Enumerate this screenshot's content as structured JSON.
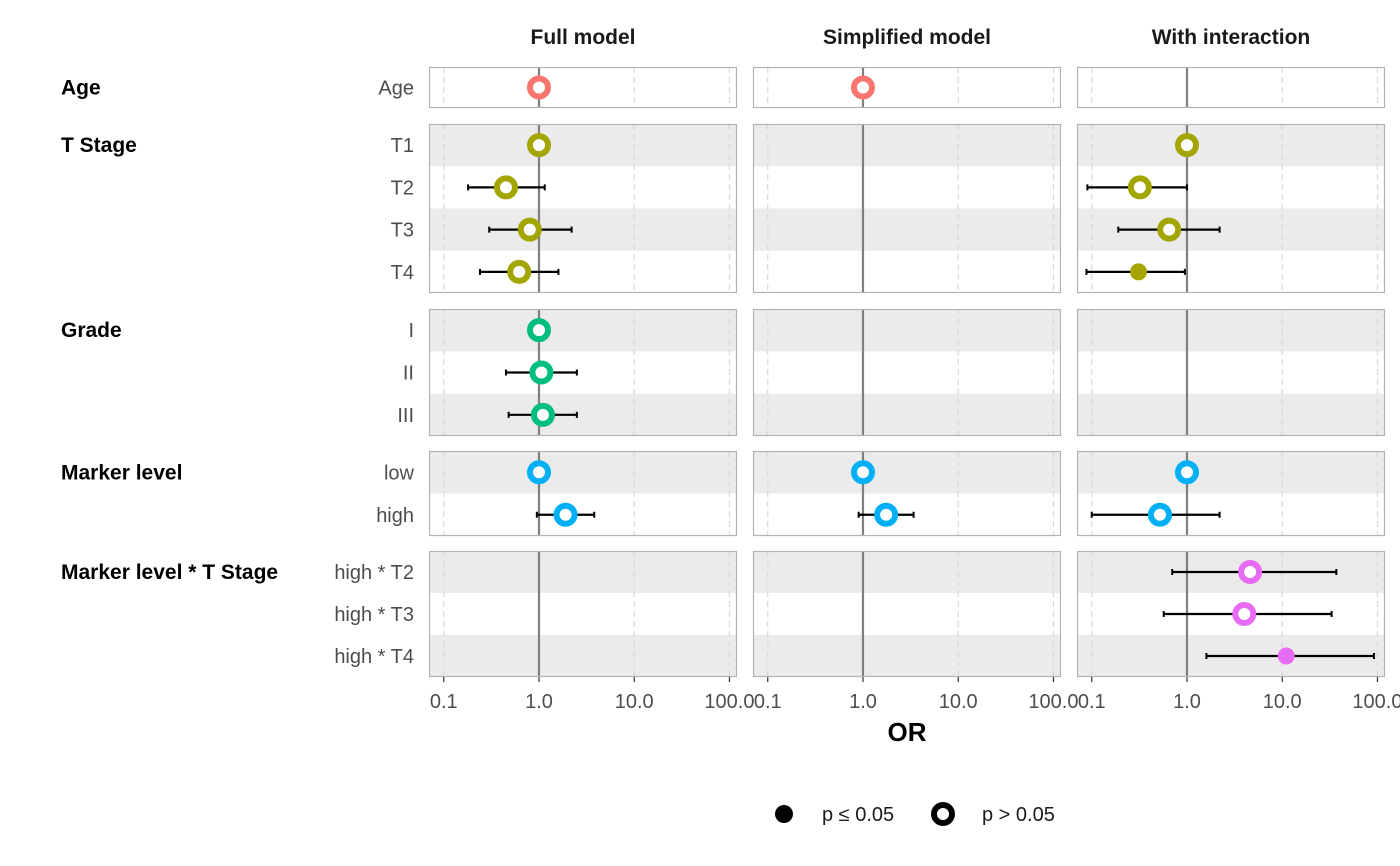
{
  "chart_data": {
    "type": "forest",
    "xlabel": "OR",
    "x_scale": "log10",
    "xlim": [
      0.07,
      120
    ],
    "x_ticks": [
      0.1,
      1.0,
      10.0,
      100.0
    ],
    "x_tick_labels": [
      "0.1",
      "1.0",
      "10.0",
      "100.0"
    ],
    "reference_line": 1.0,
    "facets": [
      "Full model",
      "Simplified model",
      "With interaction"
    ],
    "groups": [
      {
        "variable": "Age",
        "color": "#F8766D",
        "levels": [
          "Age"
        ]
      },
      {
        "variable": "T Stage",
        "color": "#A3A500",
        "levels": [
          "T1",
          "T2",
          "T3",
          "T4"
        ]
      },
      {
        "variable": "Grade",
        "color": "#00BF7D",
        "levels": [
          "I",
          "II",
          "III"
        ]
      },
      {
        "variable": "Marker level",
        "color": "#00B0F6",
        "levels": [
          "low",
          "high"
        ]
      },
      {
        "variable": "Marker level * T Stage",
        "color": "#E76BF3",
        "levels": [
          "high * T2",
          "high * T3",
          "high * T4"
        ]
      }
    ],
    "estimates": [
      {
        "facet": 0,
        "group": 0,
        "level": 0,
        "or": 1.0,
        "lo": null,
        "hi": null,
        "sig": false
      },
      {
        "facet": 0,
        "group": 1,
        "level": 0,
        "or": 1.0,
        "lo": null,
        "hi": null,
        "sig": false
      },
      {
        "facet": 0,
        "group": 1,
        "level": 1,
        "or": 0.45,
        "lo": 0.18,
        "hi": 1.15,
        "sig": false
      },
      {
        "facet": 0,
        "group": 1,
        "level": 2,
        "or": 0.8,
        "lo": 0.3,
        "hi": 2.2,
        "sig": false
      },
      {
        "facet": 0,
        "group": 1,
        "level": 3,
        "or": 0.62,
        "lo": 0.24,
        "hi": 1.6,
        "sig": false
      },
      {
        "facet": 0,
        "group": 2,
        "level": 0,
        "or": 1.0,
        "lo": null,
        "hi": null,
        "sig": false
      },
      {
        "facet": 0,
        "group": 2,
        "level": 1,
        "or": 1.06,
        "lo": 0.45,
        "hi": 2.5,
        "sig": false
      },
      {
        "facet": 0,
        "group": 2,
        "level": 2,
        "or": 1.1,
        "lo": 0.48,
        "hi": 2.5,
        "sig": false
      },
      {
        "facet": 0,
        "group": 3,
        "level": 0,
        "or": 1.0,
        "lo": null,
        "hi": null,
        "sig": false
      },
      {
        "facet": 0,
        "group": 3,
        "level": 1,
        "or": 1.9,
        "lo": 0.95,
        "hi": 3.8,
        "sig": false
      },
      {
        "facet": 1,
        "group": 0,
        "level": 0,
        "or": 1.0,
        "lo": null,
        "hi": null,
        "sig": false
      },
      {
        "facet": 1,
        "group": 3,
        "level": 0,
        "or": 1.0,
        "lo": null,
        "hi": null,
        "sig": false
      },
      {
        "facet": 1,
        "group": 3,
        "level": 1,
        "or": 1.75,
        "lo": 0.9,
        "hi": 3.4,
        "sig": false
      },
      {
        "facet": 2,
        "group": 1,
        "level": 0,
        "or": 1.0,
        "lo": null,
        "hi": null,
        "sig": false
      },
      {
        "facet": 2,
        "group": 1,
        "level": 1,
        "or": 0.32,
        "lo": 0.09,
        "hi": 1.0,
        "sig": false
      },
      {
        "facet": 2,
        "group": 1,
        "level": 2,
        "or": 0.65,
        "lo": 0.19,
        "hi": 2.2,
        "sig": false
      },
      {
        "facet": 2,
        "group": 1,
        "level": 3,
        "or": 0.31,
        "lo": 0.088,
        "hi": 0.95,
        "sig": true
      },
      {
        "facet": 2,
        "group": 3,
        "level": 0,
        "or": 1.0,
        "lo": null,
        "hi": null,
        "sig": false
      },
      {
        "facet": 2,
        "group": 3,
        "level": 1,
        "or": 0.52,
        "lo": 0.1,
        "hi": 2.2,
        "sig": false
      },
      {
        "facet": 2,
        "group": 4,
        "level": 0,
        "or": 4.6,
        "lo": 0.7,
        "hi": 37,
        "sig": false
      },
      {
        "facet": 2,
        "group": 4,
        "level": 1,
        "or": 4.0,
        "lo": 0.57,
        "hi": 33,
        "sig": false
      },
      {
        "facet": 2,
        "group": 4,
        "level": 2,
        "or": 11,
        "lo": 1.6,
        "hi": 92,
        "sig": true
      }
    ],
    "legend": {
      "position": "bottom",
      "items": [
        {
          "label": "p ≤ 0.05",
          "shape": "filled-circle"
        },
        {
          "label": "p > 0.05",
          "shape": "ring"
        }
      ]
    },
    "grid": {
      "major_vertical": true,
      "dashed": true,
      "row_shading": "alternating"
    }
  }
}
